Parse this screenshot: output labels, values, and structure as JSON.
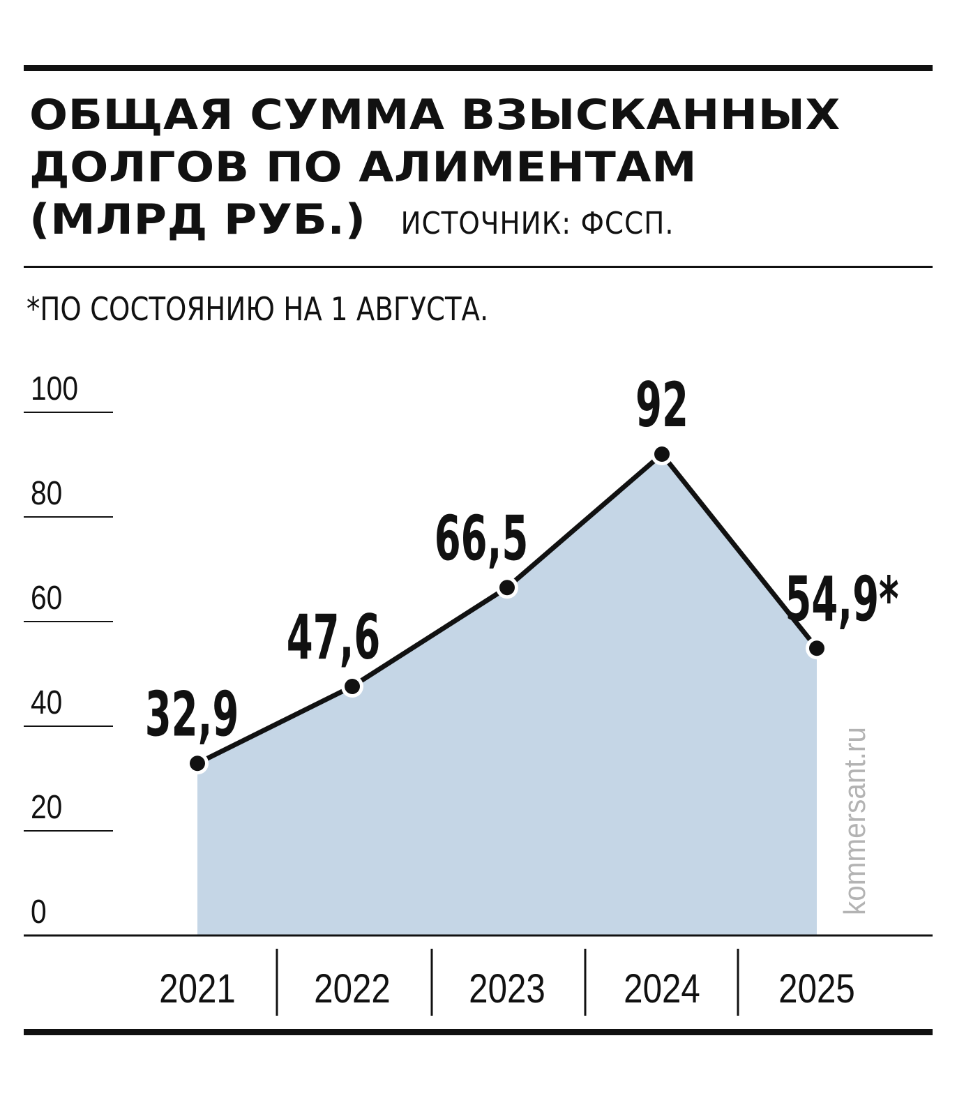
{
  "title_lines": [
    "ОБЩАЯ СУММА ВЗЫСКАННЫХ",
    "ДОЛГОВ ПО АЛИМЕНТАМ",
    "(МЛРД РУБ.)"
  ],
  "source": "ИСТОЧНИК: ФССП.",
  "footnote": "*ПО СОСТОЯНИЮ НА 1 АВГУСТА.",
  "watermark": "kommersant.ru",
  "colors": {
    "fill": "#c5d6e6",
    "line": "#111111",
    "watermark": "#b3b3b3"
  },
  "chart_data": {
    "type": "area",
    "x": [
      "2021",
      "2022",
      "2023",
      "2024",
      "2025"
    ],
    "values": [
      32.9,
      47.6,
      66.5,
      92,
      54.9
    ],
    "data_labels": [
      "32,9",
      "47,6",
      "66,5",
      "92",
      "54,9*"
    ],
    "yticks": [
      "0",
      "20",
      "40",
      "60",
      "80",
      "100"
    ],
    "ylim": [
      0,
      100
    ],
    "grid": false,
    "markers": true
  }
}
